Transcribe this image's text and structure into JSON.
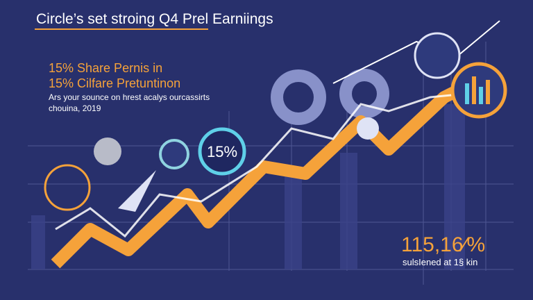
{
  "header": {
    "title": "Circle’s set stroing Q4 Prel Earniings"
  },
  "intro": {
    "line1": "15% Share Pernis in",
    "line2": "15% Cilfare Pretuntinon",
    "caption": "Ars your sounce on hrest acalys ourcassirts",
    "date": "chouina, 2019"
  },
  "badge": {
    "label": "15%"
  },
  "highlight": {
    "figure": "115,16⁄%",
    "caption": "sulsIened at 1§ kin"
  }
}
